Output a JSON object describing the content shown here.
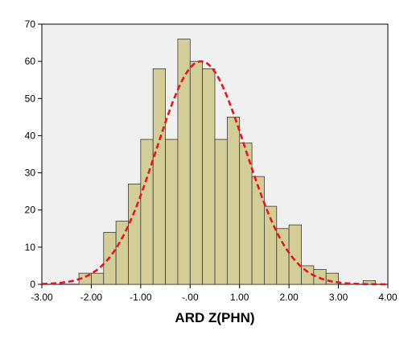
{
  "chart_data": {
    "type": "bar",
    "subtype": "histogram-with-normal-curve",
    "title": "",
    "xlabel": "ARD Z(PHN)",
    "ylabel": "",
    "xlim": [
      -3.0,
      4.0
    ],
    "ylim": [
      0,
      70
    ],
    "x_ticks": [
      -3.0,
      -2.0,
      -1.0,
      0.0,
      1.0,
      2.0,
      3.0,
      4.0
    ],
    "x_tick_labels": [
      "-3.00",
      "-2.00",
      "-1.00",
      "-.00",
      "1.00",
      "2.00",
      "3.00",
      "4.00"
    ],
    "y_ticks": [
      0,
      10,
      20,
      30,
      40,
      50,
      60,
      70
    ],
    "y_tick_labels": [
      "0",
      "10",
      "20",
      "30",
      "40",
      "50",
      "60",
      "70"
    ],
    "bin_width": 0.25,
    "bins": [
      {
        "x0": -2.25,
        "count": 3
      },
      {
        "x0": -2.0,
        "count": 3
      },
      {
        "x0": -1.75,
        "count": 14
      },
      {
        "x0": -1.5,
        "count": 17
      },
      {
        "x0": -1.25,
        "count": 27
      },
      {
        "x0": -1.0,
        "count": 39
      },
      {
        "x0": -0.75,
        "count": 58
      },
      {
        "x0": -0.5,
        "count": 39
      },
      {
        "x0": -0.25,
        "count": 66
      },
      {
        "x0": 0.0,
        "count": 60
      },
      {
        "x0": 0.25,
        "count": 58
      },
      {
        "x0": 0.5,
        "count": 39
      },
      {
        "x0": 0.75,
        "count": 45
      },
      {
        "x0": 1.0,
        "count": 38
      },
      {
        "x0": 1.25,
        "count": 29
      },
      {
        "x0": 1.5,
        "count": 21
      },
      {
        "x0": 1.75,
        "count": 15
      },
      {
        "x0": 2.0,
        "count": 16
      },
      {
        "x0": 2.25,
        "count": 5
      },
      {
        "x0": 2.5,
        "count": 4
      },
      {
        "x0": 2.75,
        "count": 3
      },
      {
        "x0": 3.5,
        "count": 1
      }
    ],
    "normal_curve": {
      "mean": 0.22,
      "sd": 0.9,
      "peak": 60
    },
    "grid": false,
    "legend": "none",
    "colors": {
      "plot_background": "#f0f0f0",
      "bar_fill": "#d3ce98",
      "bar_stroke": "#3a3a3a",
      "curve": "#e8141e",
      "axis": "#000000",
      "page_background": "#ffffff"
    }
  }
}
